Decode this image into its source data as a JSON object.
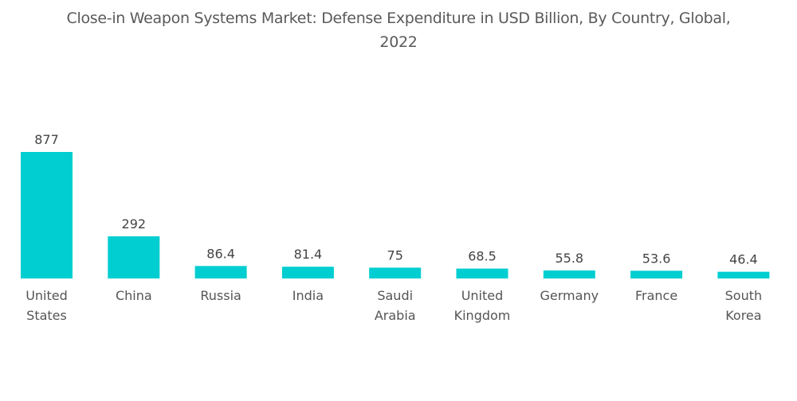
{
  "chart_data": {
    "type": "bar",
    "title": "Close-in Weapon Systems Market: Defense Expenditure in USD Billion, By Country, Global, 2022",
    "title_lines": [
      "Close-in Weapon Systems Market: Defense Expenditure in USD Billion, By Country, Global,",
      "2022"
    ],
    "categories": [
      "United States",
      "China",
      "Russia",
      "India",
      "Saudi Arabia",
      "United Kingdom",
      "Germany",
      "France",
      "South Korea"
    ],
    "category_lines": [
      [
        "United",
        "States"
      ],
      [
        "China"
      ],
      [
        "Russia"
      ],
      [
        "India"
      ],
      [
        "Saudi",
        "Arabia"
      ],
      [
        "United",
        "Kingdom"
      ],
      [
        "Germany"
      ],
      [
        "France"
      ],
      [
        "South",
        "Korea"
      ]
    ],
    "values": [
      877,
      292,
      86.4,
      81.4,
      75,
      68.5,
      55.8,
      53.6,
      46.4
    ],
    "value_labels": [
      "877",
      "292",
      "86.4",
      "81.4",
      "75",
      "68.5",
      "55.8",
      "53.6",
      "46.4"
    ],
    "xlabel": "",
    "ylabel": "",
    "ylim": [
      0,
      877
    ],
    "grid": false,
    "legend": "none",
    "bar_color": "#00ced1"
  }
}
